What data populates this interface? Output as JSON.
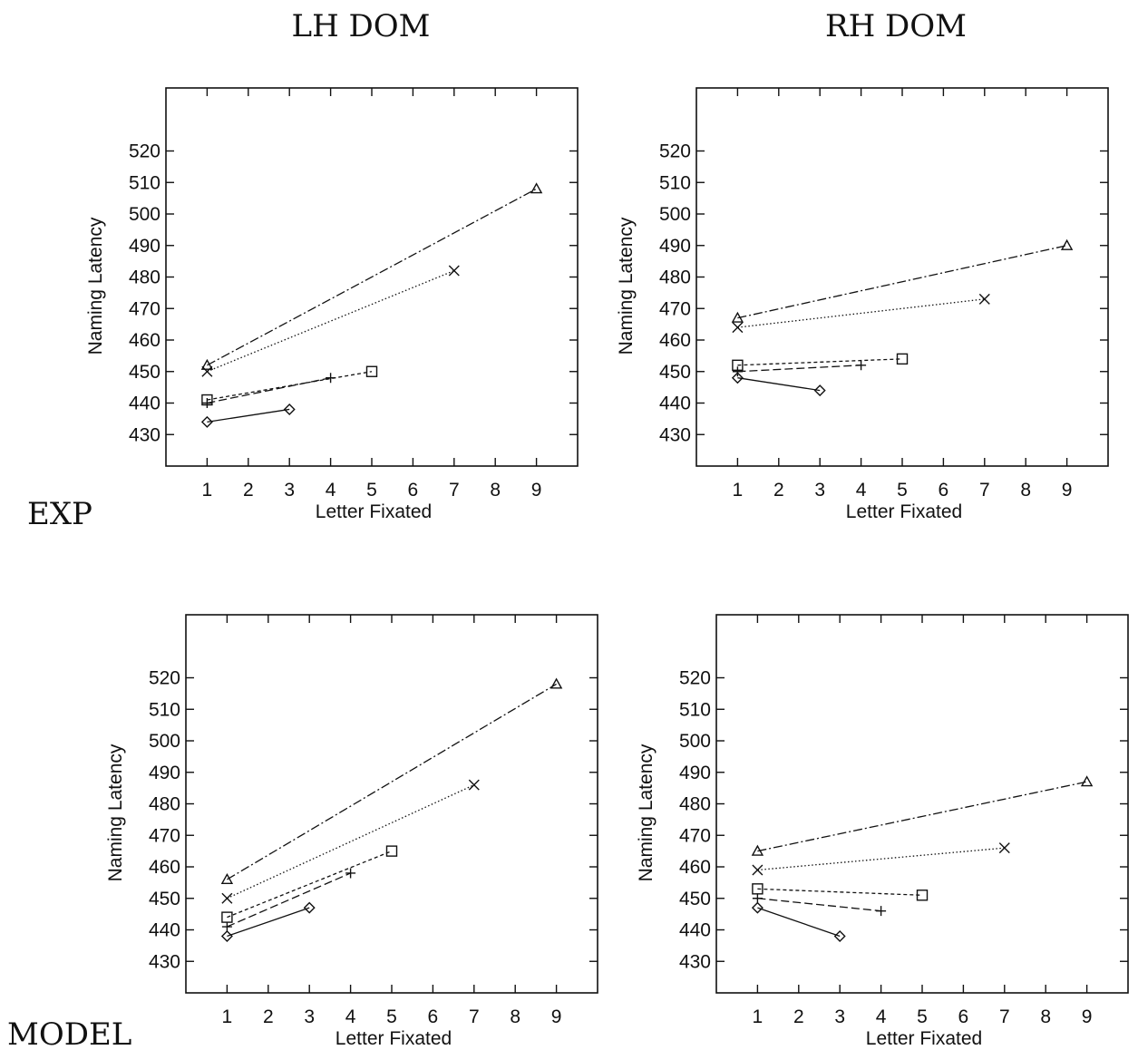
{
  "column_titles": [
    "LH DOM",
    "RH DOM"
  ],
  "row_labels": [
    "EXP",
    "MODEL"
  ],
  "chart_data": [
    {
      "type": "line",
      "row": "EXP",
      "column": "LH DOM",
      "title": "",
      "xlabel": "Letter Fixated",
      "ylabel": "Naming Latency",
      "xlim": [
        0,
        10
      ],
      "ylim": [
        420,
        540
      ],
      "xticks": [
        1,
        2,
        3,
        4,
        5,
        6,
        7,
        8,
        9
      ],
      "yticks": [
        430,
        440,
        450,
        460,
        470,
        480,
        490,
        500,
        510,
        520
      ],
      "grid": false,
      "legend": "none",
      "series": [
        {
          "marker": "diamond",
          "line": "solid",
          "x": [
            1,
            3
          ],
          "y": [
            434,
            438
          ]
        },
        {
          "marker": "plus",
          "line": "dashed",
          "x": [
            1,
            4
          ],
          "y": [
            440,
            448
          ]
        },
        {
          "marker": "square",
          "line": "short-dash",
          "x": [
            1,
            5
          ],
          "y": [
            441,
            450
          ]
        },
        {
          "marker": "cross",
          "line": "dotted",
          "x": [
            1,
            7
          ],
          "y": [
            450,
            482
          ]
        },
        {
          "marker": "triangle",
          "line": "dash-dot",
          "x": [
            1,
            9
          ],
          "y": [
            452,
            508
          ]
        }
      ]
    },
    {
      "type": "line",
      "row": "EXP",
      "column": "RH DOM",
      "title": "",
      "xlabel": "Letter Fixated",
      "ylabel": "Naming Latency",
      "xlim": [
        0,
        10
      ],
      "ylim": [
        420,
        540
      ],
      "xticks": [
        1,
        2,
        3,
        4,
        5,
        6,
        7,
        8,
        9
      ],
      "yticks": [
        430,
        440,
        450,
        460,
        470,
        480,
        490,
        500,
        510,
        520
      ],
      "grid": false,
      "legend": "none",
      "series": [
        {
          "marker": "diamond",
          "line": "solid",
          "x": [
            1,
            3
          ],
          "y": [
            448,
            444
          ]
        },
        {
          "marker": "plus",
          "line": "dashed",
          "x": [
            1,
            4
          ],
          "y": [
            450,
            452
          ]
        },
        {
          "marker": "square",
          "line": "short-dash",
          "x": [
            1,
            5
          ],
          "y": [
            452,
            454
          ]
        },
        {
          "marker": "cross",
          "line": "dotted",
          "x": [
            1,
            7
          ],
          "y": [
            464,
            473
          ]
        },
        {
          "marker": "triangle",
          "line": "dash-dot",
          "x": [
            1,
            9
          ],
          "y": [
            467,
            490
          ]
        }
      ]
    },
    {
      "type": "line",
      "row": "MODEL",
      "column": "LH DOM",
      "title": "",
      "xlabel": "Letter Fixated",
      "ylabel": "Naming Latency",
      "xlim": [
        0,
        10
      ],
      "ylim": [
        420,
        540
      ],
      "xticks": [
        1,
        2,
        3,
        4,
        5,
        6,
        7,
        8,
        9
      ],
      "yticks": [
        430,
        440,
        450,
        460,
        470,
        480,
        490,
        500,
        510,
        520
      ],
      "grid": false,
      "legend": "none",
      "series": [
        {
          "marker": "diamond",
          "line": "solid",
          "x": [
            1,
            3
          ],
          "y": [
            438,
            447
          ]
        },
        {
          "marker": "plus",
          "line": "dashed",
          "x": [
            1,
            4
          ],
          "y": [
            441,
            458
          ]
        },
        {
          "marker": "square",
          "line": "short-dash",
          "x": [
            1,
            5
          ],
          "y": [
            444,
            465
          ]
        },
        {
          "marker": "cross",
          "line": "dotted",
          "x": [
            1,
            7
          ],
          "y": [
            450,
            486
          ]
        },
        {
          "marker": "triangle",
          "line": "dash-dot",
          "x": [
            1,
            9
          ],
          "y": [
            456,
            518
          ]
        }
      ]
    },
    {
      "type": "line",
      "row": "MODEL",
      "column": "RH DOM",
      "title": "",
      "xlabel": "Letter Fixated",
      "ylabel": "Naming Latency",
      "xlim": [
        0,
        10
      ],
      "ylim": [
        420,
        540
      ],
      "xticks": [
        1,
        2,
        3,
        4,
        5,
        6,
        7,
        8,
        9
      ],
      "yticks": [
        430,
        440,
        450,
        460,
        470,
        480,
        490,
        500,
        510,
        520
      ],
      "grid": false,
      "legend": "none",
      "series": [
        {
          "marker": "diamond",
          "line": "solid",
          "x": [
            1,
            3
          ],
          "y": [
            447,
            438
          ]
        },
        {
          "marker": "plus",
          "line": "dashed",
          "x": [
            1,
            4
          ],
          "y": [
            450,
            446
          ]
        },
        {
          "marker": "square",
          "line": "short-dash",
          "x": [
            1,
            5
          ],
          "y": [
            453,
            451
          ]
        },
        {
          "marker": "cross",
          "line": "dotted",
          "x": [
            1,
            7
          ],
          "y": [
            459,
            466
          ]
        },
        {
          "marker": "triangle",
          "line": "dash-dot",
          "x": [
            1,
            9
          ],
          "y": [
            465,
            487
          ]
        }
      ]
    }
  ]
}
